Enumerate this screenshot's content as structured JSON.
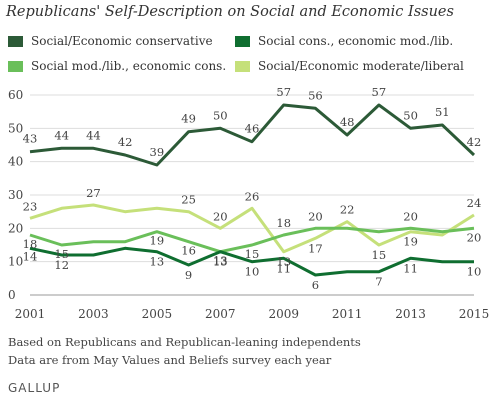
{
  "title": "Republicans' Self-Description on Social and Economic Issues",
  "notes": [
    "Based on Republicans and Republican-leaning independents",
    "Data are from May Values and Beliefs survey each year"
  ],
  "logo": "GALLUP",
  "chart_data": {
    "type": "line",
    "title": "Republicans' Self-Description on Social and Economic Issues",
    "xlabel": "",
    "ylabel": "",
    "ylim": [
      0,
      60
    ],
    "yticks": [
      0,
      10,
      20,
      30,
      40,
      50,
      60
    ],
    "xlim": [
      2001,
      2015
    ],
    "xticks": [
      2001,
      2003,
      2005,
      2007,
      2009,
      2011,
      2013,
      2015
    ],
    "x": [
      2001,
      2002,
      2003,
      2004,
      2005,
      2006,
      2007,
      2008,
      2009,
      2010,
      2011,
      2012,
      2013,
      2014,
      2015
    ],
    "grid": true,
    "legend_position": "top",
    "series": [
      {
        "name": "Social/Economic conservative",
        "color": "#2c5a37",
        "values": [
          43,
          44,
          44,
          42,
          39,
          49,
          50,
          46,
          57,
          56,
          48,
          57,
          50,
          51,
          42
        ],
        "labeled": [
          true,
          true,
          true,
          true,
          true,
          true,
          true,
          true,
          true,
          true,
          true,
          true,
          true,
          true,
          true
        ]
      },
      {
        "name": "Social cons., economic mod./lib.",
        "color": "#0f6e30",
        "values": [
          14,
          12,
          12,
          14,
          13,
          9,
          13,
          10,
          11,
          6,
          7,
          7,
          11,
          10,
          10
        ],
        "labeled": [
          true,
          true,
          false,
          false,
          true,
          true,
          true,
          true,
          true,
          true,
          false,
          true,
          true,
          false,
          true
        ]
      },
      {
        "name": "Social mod./lib., economic cons.",
        "color": "#6abf5a",
        "values": [
          18,
          15,
          16,
          16,
          19,
          16,
          13,
          15,
          18,
          20,
          20,
          19,
          20,
          19,
          20
        ],
        "labeled": [
          true,
          true,
          false,
          false,
          true,
          true,
          true,
          true,
          true,
          true,
          false,
          false,
          true,
          false,
          true
        ]
      },
      {
        "name": "Social/Economic moderate/liberal",
        "color": "#c5e07a",
        "values": [
          23,
          26,
          27,
          25,
          26,
          25,
          20,
          26,
          13,
          17,
          22,
          15,
          19,
          18,
          24
        ],
        "labeled": [
          true,
          false,
          true,
          false,
          false,
          true,
          true,
          true,
          true,
          true,
          true,
          true,
          true,
          false,
          true
        ]
      }
    ]
  }
}
